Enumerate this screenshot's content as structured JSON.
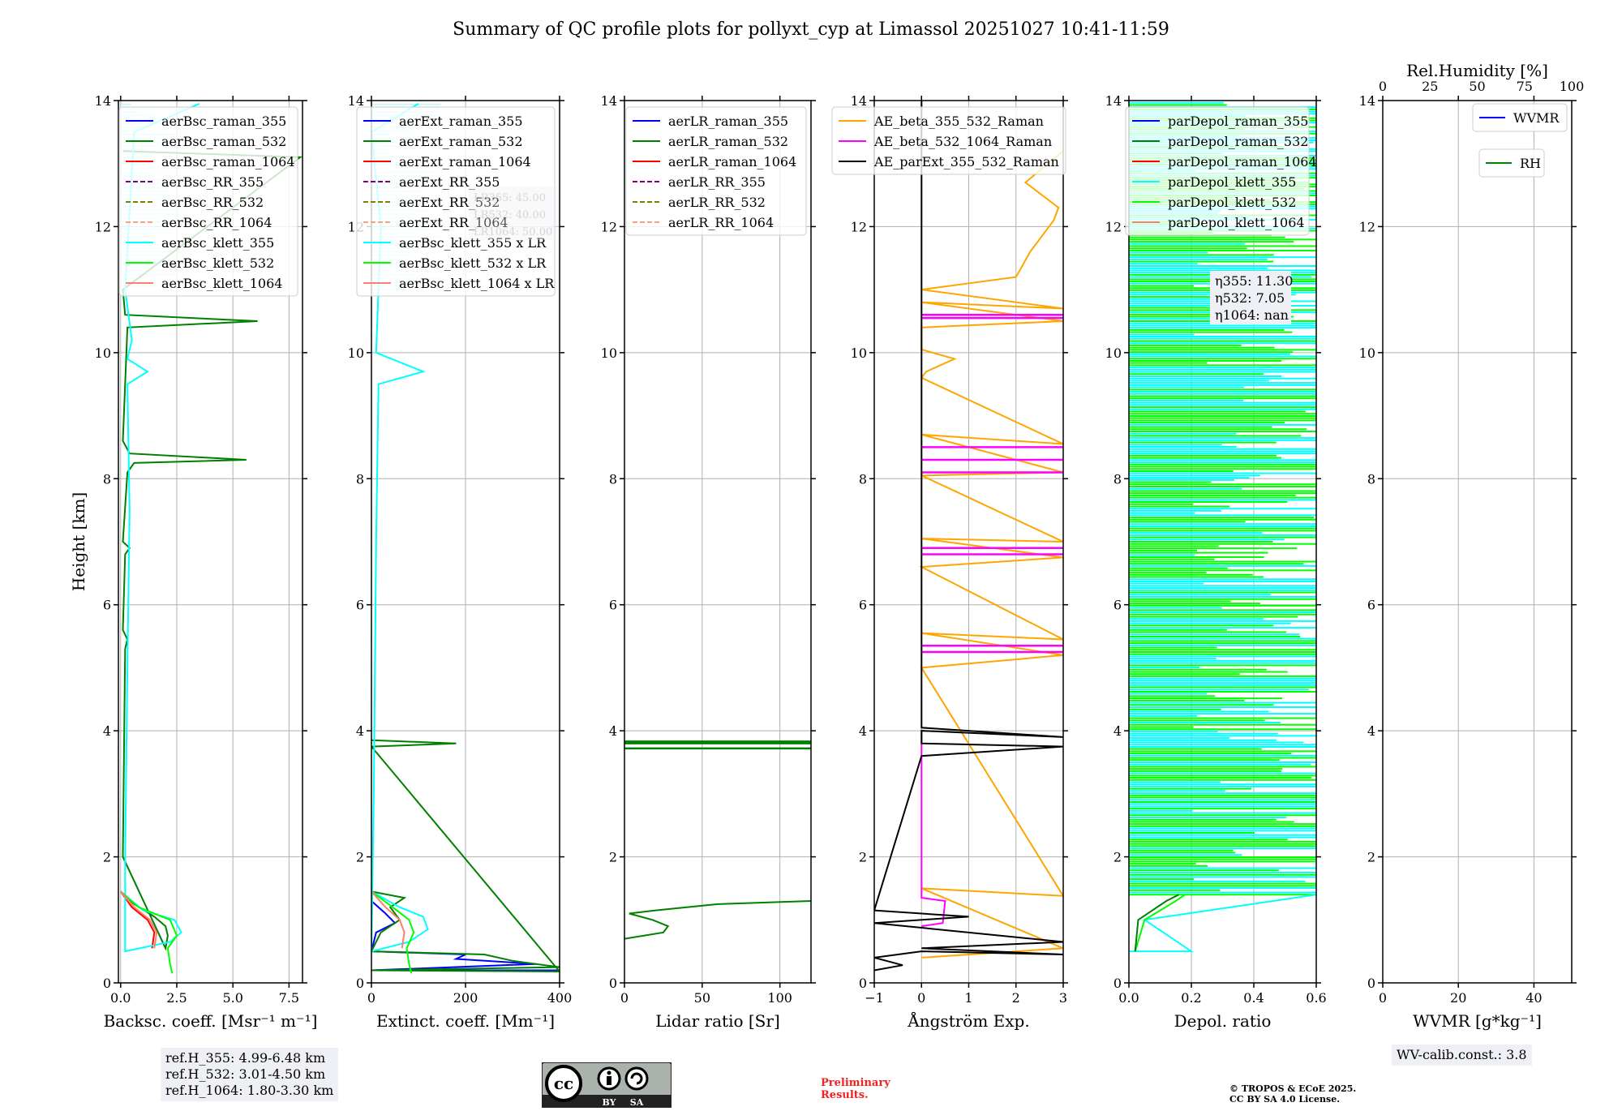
{
  "title": "Summary of QC profile plots for pollyxt_cyp at Limassol 20251027 10:41-11:59",
  "ylabel": "Height [km]",
  "ref_heights": [
    "ref.H_355: 4.99-6.48 km",
    "ref.H_532: 3.01-4.50 km",
    "ref.H_1064: 1.80-3.30 km"
  ],
  "wv_calib": "WV-calib.const.: 3.8",
  "preliminary": [
    "Preliminary",
    "Results."
  ],
  "copyright": [
    "© TROPOS & ECoE 2025.",
    "CC BY SA 4.0 License."
  ],
  "cc_badge": {
    "by": "BY",
    "sa": "SA",
    "cc": "cc"
  },
  "colors": {
    "c355": "#0000ff",
    "c532": "#008000",
    "c1064": "#ff0000",
    "rr355": "#800080",
    "rr532": "#808000",
    "rr1064": "#ffa07a",
    "k355": "#00ffff",
    "k532": "#00ff00",
    "k1064": "#fa8072",
    "ae1": "#ffa500",
    "ae2": "#ff00ff",
    "ae3": "#000000"
  },
  "chart_data": [
    {
      "type": "line",
      "id": "backscatter",
      "xlabel": "Backsc. coeff. [Msr⁻¹ m⁻¹]",
      "ylabel": "Height [km]",
      "xlim": [
        -0.1,
        8.1
      ],
      "ylim": [
        0,
        14
      ],
      "xticks": [
        0,
        2.5,
        5,
        7.5
      ],
      "xticklabels": [
        "0.0",
        "2.5",
        "5.0",
        "7.5"
      ],
      "yticks": [
        0,
        2,
        4,
        6,
        8,
        10,
        12,
        14
      ],
      "grid": true,
      "legend": [
        "aerBsc_raman_355",
        "aerBsc_raman_532",
        "aerBsc_raman_1064",
        "aerBsc_RR_355",
        "aerBsc_RR_532",
        "aerBsc_RR_1064",
        "aerBsc_klett_355",
        "aerBsc_klett_532",
        "aerBsc_klett_1064"
      ],
      "legend_placement": "upper-right",
      "series": [
        {
          "name": "aerBsc_raman_532",
          "color": "c532",
          "points": [
            [
              0,
              1.45
            ],
            [
              0.6,
              1.25
            ],
            [
              1.5,
              1.05
            ],
            [
              2.0,
              0.9
            ],
            [
              2.1,
              0.75
            ],
            [
              2.0,
              0.55
            ],
            [
              0.1,
              2.0
            ],
            [
              0.2,
              5.3
            ],
            [
              0.3,
              5.45
            ],
            [
              0.1,
              5.6
            ],
            [
              0.2,
              6.8
            ],
            [
              0.4,
              6.9
            ],
            [
              0.1,
              7.0
            ],
            [
              0.3,
              8.1
            ],
            [
              0.6,
              8.25
            ],
            [
              5.6,
              8.3
            ],
            [
              0.4,
              8.4
            ],
            [
              0.1,
              8.6
            ],
            [
              0.3,
              10.4
            ],
            [
              6.1,
              10.5
            ],
            [
              0.2,
              10.6
            ],
            [
              0.1,
              11
            ],
            [
              8.0,
              13.1
            ],
            [
              0.1,
              13.2
            ]
          ]
        },
        {
          "name": "aerBsc_raman_1064",
          "color": "c1064",
          "points": [
            [
              0,
              1.45
            ],
            [
              0.5,
              1.2
            ],
            [
              1.2,
              1.0
            ],
            [
              1.5,
              0.8
            ],
            [
              1.4,
              0.55
            ]
          ]
        },
        {
          "name": "aerBsc_klett_355",
          "color": "k355",
          "points": [
            [
              0,
              1.45
            ],
            [
              1.0,
              1.15
            ],
            [
              2.4,
              1.0
            ],
            [
              2.7,
              0.8
            ],
            [
              2.2,
              0.65
            ],
            [
              0.2,
              0.5
            ],
            [
              0.2,
              2
            ],
            [
              0.3,
              5
            ],
            [
              0.4,
              7.5
            ],
            [
              0.3,
              9.5
            ],
            [
              1.2,
              9.7
            ],
            [
              0.3,
              9.9
            ],
            [
              0.5,
              10.2
            ],
            [
              0.2,
              11
            ],
            [
              0.6,
              13.5
            ],
            [
              3.5,
              13.95
            ]
          ]
        },
        {
          "name": "aerBsc_klett_532",
          "color": "k532",
          "points": [
            [
              0,
              1.45
            ],
            [
              0.8,
              1.2
            ],
            [
              2.2,
              1.0
            ],
            [
              2.5,
              0.75
            ],
            [
              2.1,
              0.55
            ],
            [
              2.2,
              0.3
            ],
            [
              2.3,
              0.15
            ]
          ]
        },
        {
          "name": "aerBsc_klett_1064",
          "color": "k1064",
          "points": [
            [
              0,
              1.45
            ],
            [
              0.6,
              1.2
            ],
            [
              1.3,
              1.0
            ],
            [
              1.6,
              0.8
            ],
            [
              1.5,
              0.55
            ]
          ]
        }
      ]
    },
    {
      "type": "line",
      "id": "extinction",
      "xlabel": "Extinct. coeff. [Mm⁻¹]",
      "xlim": [
        0,
        400
      ],
      "ylim": [
        0,
        14
      ],
      "xticks": [
        0,
        200,
        400
      ],
      "xticklabels": [
        "0",
        "200",
        "400"
      ],
      "yticks": [
        0,
        2,
        4,
        6,
        8,
        10,
        12,
        14
      ],
      "grid": true,
      "legend": [
        "aerExt_raman_355",
        "aerExt_raman_532",
        "aerExt_raman_1064",
        "aerExt_RR_355",
        "aerExt_RR_532",
        "aerExt_RR_1064",
        "aerBsc_klett_355 x LR",
        "aerBsc_klett_532 x LR",
        "aerBsc_klett_1064 x LR"
      ],
      "legend_placement": "upper-right",
      "annotation": [
        "LR355: 45.00",
        "LR532: 40.00",
        "LR1064: 50.00"
      ],
      "series": [
        {
          "name": "aerExt_raman_355",
          "color": "c355",
          "points": [
            [
              0,
              1.3
            ],
            [
              30,
              1.1
            ],
            [
              50,
              0.95
            ],
            [
              10,
              0.8
            ],
            [
              0,
              0.5
            ],
            [
              200,
              0.45
            ],
            [
              180,
              0.38
            ],
            [
              350,
              0.3
            ],
            [
              0,
              0.2
            ],
            [
              400,
              0.2
            ]
          ]
        },
        {
          "name": "aerExt_raman_532",
          "color": "c532",
          "points": [
            [
              0,
              1.45
            ],
            [
              70,
              1.35
            ],
            [
              40,
              1.2
            ],
            [
              60,
              1.0
            ],
            [
              20,
              0.8
            ],
            [
              0,
              0.5
            ],
            [
              240,
              0.45
            ],
            [
              300,
              0.35
            ],
            [
              400,
              0.25
            ],
            [
              0,
              0.2
            ],
            [
              400,
              0.18
            ],
            [
              0,
              3.75
            ],
            [
              180,
              3.8
            ],
            [
              0,
              3.85
            ]
          ]
        },
        {
          "name": "aerBsc_klett_355 x LR",
          "color": "k355",
          "points": [
            [
              0,
              1.45
            ],
            [
              60,
              1.2
            ],
            [
              110,
              1.05
            ],
            [
              120,
              0.85
            ],
            [
              80,
              0.65
            ],
            [
              0,
              0.5
            ],
            [
              5,
              3
            ],
            [
              10,
              7
            ],
            [
              15,
              9.5
            ],
            [
              110,
              9.7
            ],
            [
              10,
              10
            ],
            [
              20,
              12
            ],
            [
              0,
              13.5
            ],
            [
              100,
              13.95
            ]
          ]
        },
        {
          "name": "aerBsc_klett_532 x LR",
          "color": "k532",
          "points": [
            [
              0,
              1.45
            ],
            [
              45,
              1.2
            ],
            [
              80,
              1.0
            ],
            [
              90,
              0.8
            ],
            [
              75,
              0.55
            ],
            [
              80,
              0.3
            ],
            [
              85,
              0.15
            ]
          ]
        },
        {
          "name": "aerBsc_klett_1064 x LR",
          "color": "k1064",
          "points": [
            [
              0,
              1.45
            ],
            [
              30,
              1.2
            ],
            [
              60,
              1.0
            ],
            [
              70,
              0.8
            ],
            [
              65,
              0.55
            ]
          ]
        }
      ]
    },
    {
      "type": "line",
      "id": "lidar-ratio",
      "xlabel": "Lidar ratio [Sr]",
      "xlim": [
        0,
        120
      ],
      "ylim": [
        0,
        14
      ],
      "xticks": [
        0,
        50,
        100
      ],
      "xticklabels": [
        "0",
        "50",
        "100"
      ],
      "yticks": [
        0,
        2,
        4,
        6,
        8,
        10,
        12,
        14
      ],
      "grid": true,
      "legend": [
        "aerLR_raman_355",
        "aerLR_raman_532",
        "aerLR_raman_1064",
        "aerLR_RR_355",
        "aerLR_RR_532",
        "aerLR_RR_1064"
      ],
      "legend_placement": "upper-right",
      "series": [
        {
          "name": "aerLR_raman_532",
          "color": "c532",
          "points": [
            [
              0,
              0.7
            ],
            [
              25,
              0.8
            ],
            [
              28,
              0.9
            ],
            [
              18,
              1.0
            ],
            [
              3,
              1.1
            ],
            [
              20,
              1.15
            ],
            [
              60,
              1.25
            ],
            [
              120,
              1.3
            ]
          ],
          "hlines": [
            3.72,
            3.8,
            3.83
          ]
        }
      ]
    },
    {
      "type": "line",
      "id": "angstrom",
      "xlabel": "Ångström Exp.",
      "xlim": [
        -1,
        3
      ],
      "ylim": [
        0,
        14
      ],
      "xticks": [
        -1,
        0,
        1,
        2,
        3
      ],
      "xticklabels": [
        "−1",
        "0",
        "1",
        "2",
        "3"
      ],
      "yticks": [
        0,
        2,
        4,
        6,
        8,
        10,
        12,
        14
      ],
      "grid": true,
      "legend": [
        "AE_beta_355_532_Raman",
        "AE_beta_532_1064_Raman",
        "AE_parExt_355_532_Raman"
      ],
      "legend_placement": "upper-left",
      "series": [
        {
          "name": "AE_beta_355_532_Raman",
          "color": "ae1",
          "points": [
            [
              0,
              0.4
            ],
            [
              3,
              0.55
            ],
            [
              0,
              1.5
            ],
            [
              3,
              1.38
            ],
            [
              0,
              5.0
            ],
            [
              3,
              5.2
            ],
            [
              0,
              5.55
            ],
            [
              3,
              5.45
            ],
            [
              0,
              6.6
            ],
            [
              3,
              6.75
            ],
            [
              0,
              7.05
            ],
            [
              3,
              7.0
            ],
            [
              0,
              8.05
            ],
            [
              3,
              8.1
            ],
            [
              0,
              8.7
            ],
            [
              3,
              8.55
            ],
            [
              0,
              9.6
            ],
            [
              0.1,
              9.7
            ],
            [
              0.7,
              9.9
            ],
            [
              0,
              10.05
            ],
            [
              0,
              10.4
            ],
            [
              3,
              10.5
            ],
            [
              0,
              10.8
            ],
            [
              3,
              10.7
            ],
            [
              0,
              11
            ],
            [
              2,
              11.2
            ],
            [
              2.3,
              11.6
            ],
            [
              2.8,
              12.1
            ],
            [
              2.9,
              12.3
            ],
            [
              2.2,
              12.7
            ],
            [
              3,
              13.2
            ]
          ]
        },
        {
          "name": "AE_beta_532_1064_Raman",
          "color": "ae2",
          "points": [
            [
              0,
              0.9
            ],
            [
              0.45,
              0.95
            ],
            [
              0.5,
              1.3
            ],
            [
              0,
              1.35
            ],
            [
              0,
              3.5
            ],
            [
              0,
              4.0
            ]
          ],
          "hlines": [
            5.25,
            5.35,
            6.8,
            6.9,
            8.1,
            8.3,
            8.5,
            10.55,
            10.6
          ]
        },
        {
          "name": "AE_parExt_355_532_Raman",
          "color": "ae3",
          "points": [
            [
              -1,
              0.2
            ],
            [
              -0.4,
              0.28
            ],
            [
              -1,
              0.4
            ],
            [
              0,
              0.5
            ],
            [
              3,
              0.45
            ],
            [
              0,
              0.55
            ],
            [
              3,
              0.65
            ],
            [
              -1,
              0.95
            ],
            [
              1,
              1.05
            ],
            [
              -1,
              1.15
            ],
            [
              0,
              3.6
            ],
            [
              3,
              3.75
            ],
            [
              0,
              3.8
            ],
            [
              0,
              4.0
            ],
            [
              3,
              3.9
            ],
            [
              0,
              4.05
            ],
            [
              0,
              14
            ]
          ]
        }
      ]
    },
    {
      "type": "line",
      "id": "depol",
      "xlabel": "Depol. ratio",
      "xlim": [
        0,
        0.6
      ],
      "ylim": [
        0,
        14
      ],
      "xticks": [
        0,
        0.2,
        0.4,
        0.6
      ],
      "xticklabels": [
        "0.0",
        "0.2",
        "0.4",
        "0.6"
      ],
      "yticks": [
        0,
        2,
        4,
        6,
        8,
        10,
        12,
        14
      ],
      "grid": true,
      "legend": [
        "parDepol_raman_355",
        "parDepol_raman_532",
        "parDepol_raman_1064",
        "parDepol_klett_355",
        "parDepol_klett_532",
        "parDepol_klett_1064"
      ],
      "legend_placement": "upper-left",
      "annotation": [
        "η355: 11.30",
        "η532: 7.05",
        "η1064: nan"
      ],
      "series": [
        {
          "name": "parDepol_klett_355",
          "color": "k355",
          "noisy_from_km": 1.4,
          "points": [
            [
              0,
              0.5
            ],
            [
              0.2,
              0.5
            ],
            [
              0.05,
              1.0
            ],
            [
              0.6,
              1.4
            ]
          ]
        },
        {
          "name": "parDepol_klett_532",
          "color": "k532",
          "noisy_from_km": 1.4,
          "points": [
            [
              0.02,
              0.5
            ],
            [
              0.05,
              1.0
            ],
            [
              0.15,
              1.3
            ],
            [
              0.18,
              1.4
            ]
          ]
        },
        {
          "name": "parDepol_raman_532",
          "color": "c532",
          "points": [
            [
              0.02,
              0.5
            ],
            [
              0.03,
              1.0
            ],
            [
              0.12,
              1.3
            ],
            [
              0.16,
              1.4
            ]
          ]
        }
      ]
    },
    {
      "type": "line",
      "id": "wvmr",
      "xlabel": "WVMR [g*kg⁻¹]",
      "xlabel_top": "Rel.Humidity [%]",
      "xlim": [
        0,
        50
      ],
      "ylim": [
        0,
        14
      ],
      "xticks": [
        0,
        20,
        40
      ],
      "xticklabels": [
        "0",
        "20",
        "40"
      ],
      "xlim_top": [
        0,
        100
      ],
      "xticks_top": [
        0,
        25,
        50,
        75,
        100
      ],
      "yticks": [
        0,
        2,
        4,
        6,
        8,
        10,
        12,
        14
      ],
      "grid": true,
      "legend": [
        "WVMR",
        "RH"
      ],
      "legend_placement": "upper-right",
      "series": []
    }
  ]
}
